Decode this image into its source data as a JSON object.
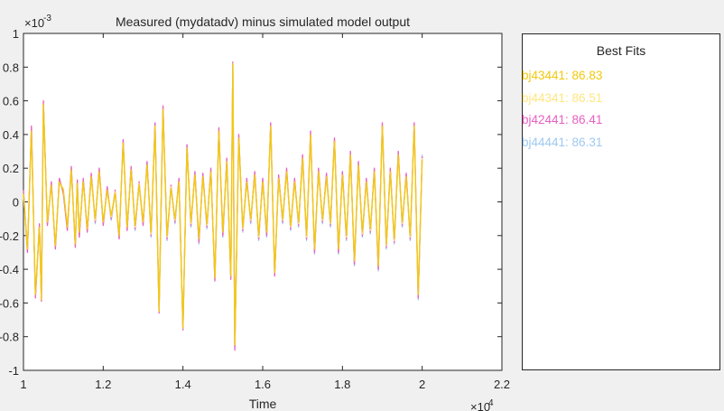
{
  "chart_data": {
    "type": "line",
    "title": "Measured (mydatadv) minus simulated model output",
    "xlabel": "Time",
    "ylabel": "",
    "xlim": [
      10000,
      22000
    ],
    "ylim": [
      -0.001,
      0.001
    ],
    "x_ticks": [
      10000,
      12000,
      14000,
      16000,
      18000,
      20000,
      22000
    ],
    "x_tick_labels": [
      "1",
      "1.2",
      "1.4",
      "1.6",
      "1.8",
      "2",
      "2.2"
    ],
    "x_exponent_label": "×10",
    "x_exponent": "4",
    "y_ticks": [
      -0.001,
      -0.0008,
      -0.0006,
      -0.0004,
      -0.0002,
      0,
      0.0002,
      0.0004,
      0.0006,
      0.0008,
      0.001
    ],
    "y_tick_labels": [
      "-1",
      "-0.8",
      "-0.6",
      "-0.4",
      "-0.2",
      "0",
      "0.2",
      "0.4",
      "0.6",
      "0.8",
      "1"
    ],
    "y_exponent_label": "×10",
    "y_exponent": "-3",
    "grid": false,
    "legend_position": "right panel",
    "x": [
      10000,
      10100,
      10200,
      10300,
      10400,
      10450,
      10500,
      10600,
      10700,
      10800,
      10900,
      11000,
      11100,
      11200,
      11300,
      11350,
      11400,
      11500,
      11600,
      11700,
      11800,
      11900,
      12000,
      12100,
      12200,
      12300,
      12400,
      12500,
      12600,
      12700,
      12800,
      12900,
      13000,
      13100,
      13200,
      13300,
      13400,
      13500,
      13600,
      13700,
      13800,
      13900,
      14000,
      14100,
      14200,
      14300,
      14400,
      14500,
      14600,
      14700,
      14800,
      14900,
      15000,
      15100,
      15200,
      15250,
      15300,
      15400,
      15500,
      15600,
      15700,
      15800,
      15900,
      16000,
      16100,
      16200,
      16300,
      16400,
      16500,
      16600,
      16700,
      16800,
      16900,
      17000,
      17100,
      17200,
      17300,
      17400,
      17500,
      17600,
      17700,
      17800,
      17900,
      18000,
      18100,
      18200,
      18300,
      18400,
      18500,
      18600,
      18700,
      18800,
      18900,
      19000,
      19100,
      19200,
      19300,
      19400,
      19500,
      19600,
      19700,
      19800,
      19900,
      20000
    ],
    "series": [
      {
        "name": "bj43441",
        "color": "#f2c80f",
        "values": [
          5e-05,
          -0.00028,
          0.00042,
          -0.00055,
          -0.00015,
          -0.00058,
          0.00058,
          -0.00012,
          0.0001,
          -0.00026,
          0.00012,
          7e-05,
          -0.00015,
          0.00019,
          -0.00025,
          0.00011,
          -0.00018,
          0.00012,
          -0.00016,
          0.00015,
          -0.0001,
          0.00018,
          -0.00012,
          7e-05,
          -8e-05,
          5e-05,
          -0.0002,
          0.00035,
          -0.00015,
          0.00019,
          -0.00014,
          0.0001,
          -0.00012,
          0.00022,
          -0.00018,
          0.00045,
          -0.00065,
          0.00055,
          -0.0002,
          8e-05,
          -0.0001,
          0.00012,
          -0.00075,
          0.00032,
          -0.00012,
          0.00016,
          -0.00022,
          0.00015,
          -0.00013,
          0.00018,
          -0.00045,
          0.00042,
          -0.00018,
          0.00024,
          -0.00044,
          0.00082,
          -0.00085,
          0.00038,
          -0.00015,
          0.00012,
          -0.0001,
          0.00016,
          -0.0002,
          0.00012,
          -0.00018,
          0.00045,
          -0.00042,
          0.00014,
          -0.0001,
          0.00018,
          -0.00014,
          0.00012,
          -0.00012,
          0.00026,
          -0.0002,
          0.0004,
          -0.00028,
          0.00018,
          -0.0001,
          0.00015,
          -0.00012,
          0.00036,
          -0.00028,
          0.00016,
          -0.0002,
          0.00028,
          -0.00035,
          0.00022,
          -0.00018,
          0.00012,
          -0.00016,
          0.00018,
          -0.00038,
          0.00045,
          -0.00025,
          0.00018,
          -0.00022,
          0.00028,
          -0.00012,
          0.00015,
          -0.0002,
          0.00045,
          -0.00055,
          0.00025
        ]
      },
      {
        "name": "bj44341",
        "color": "#ffe680",
        "values": [
          4e-05,
          -0.00027,
          0.0004,
          -0.00053,
          -0.00016,
          -0.00056,
          0.00057,
          -0.00011,
          9e-05,
          -0.00025,
          0.00011,
          8e-05,
          -0.00014,
          0.00018,
          -0.00024,
          0.0001,
          -0.00017,
          0.00011,
          -0.00015,
          0.00014,
          -0.00011,
          0.00017,
          -0.00011,
          6e-05,
          -9e-05,
          6e-05,
          -0.00019,
          0.00034,
          -0.00014,
          0.00018,
          -0.00015,
          0.00011,
          -0.00011,
          0.00021,
          -0.00019,
          0.00044,
          -0.00064,
          0.00054,
          -0.00021,
          9e-05,
          -0.00011,
          0.00011,
          -0.00074,
          0.00031,
          -0.00013,
          0.00015,
          -0.00021,
          0.00014,
          -0.00014,
          0.00017,
          -0.00044,
          0.00041,
          -0.00017,
          0.00023,
          -0.00043,
          0.00081,
          -0.00084,
          0.00037,
          -0.00016,
          0.00011,
          -0.00011,
          0.00015,
          -0.00021,
          0.00011,
          -0.00017,
          0.00044,
          -0.00041,
          0.00013,
          -0.00011,
          0.00017,
          -0.00015,
          0.00011,
          -0.00013,
          0.00025,
          -0.00021,
          0.00039,
          -0.00027,
          0.00017,
          -0.00011,
          0.00014,
          -0.00013,
          0.00035,
          -0.00027,
          0.00015,
          -0.00021,
          0.00027,
          -0.00034,
          0.00021,
          -0.00019,
          0.00011,
          -0.00017,
          0.00017,
          -0.00037,
          0.00044,
          -0.00026,
          0.00017,
          -0.00023,
          0.00027,
          -0.00013,
          0.00014,
          -0.00021,
          0.00044,
          -0.00054,
          0.00026
        ]
      },
      {
        "name": "bj42441",
        "color": "#e85fc0",
        "values": [
          7e-05,
          -0.0003,
          0.00045,
          -0.00057,
          -0.00013,
          -0.00059,
          0.0006,
          -0.00014,
          0.00012,
          -0.00028,
          0.00014,
          5e-05,
          -0.00017,
          0.00021,
          -0.00027,
          0.00013,
          -0.00021,
          0.00014,
          -0.00018,
          0.00017,
          -0.00012,
          0.0002,
          -0.00014,
          9e-05,
          -0.0001,
          7e-05,
          -0.00022,
          0.00037,
          -0.00017,
          0.00021,
          -0.00016,
          0.00012,
          -0.00014,
          0.00024,
          -0.0002,
          0.00047,
          -0.00066,
          0.00057,
          -0.00022,
          0.0001,
          -0.00012,
          0.00014,
          -0.00076,
          0.00034,
          -0.00014,
          0.00018,
          -0.00024,
          0.00017,
          -0.00015,
          0.0002,
          -0.00047,
          0.00044,
          -0.0002,
          0.00026,
          -0.00046,
          0.00083,
          -0.00088,
          0.0004,
          -0.00017,
          0.00014,
          -0.00012,
          0.00018,
          -0.00022,
          0.00014,
          -0.0002,
          0.00047,
          -0.00044,
          0.00016,
          -0.00012,
          0.0002,
          -0.00016,
          0.00014,
          -0.00014,
          0.00028,
          -0.00022,
          0.00042,
          -0.0003,
          0.0002,
          -0.00012,
          0.00017,
          -0.00014,
          0.00038,
          -0.0003,
          0.00018,
          -0.00022,
          0.0003,
          -0.00037,
          0.00024,
          -0.0002,
          0.00014,
          -0.00018,
          0.0002,
          -0.0004,
          0.00047,
          -0.00027,
          0.0002,
          -0.00024,
          0.0003,
          -0.00014,
          0.00017,
          -0.00022,
          0.00047,
          -0.00057,
          0.00027
        ]
      },
      {
        "name": "bj44441",
        "color": "#9ec9f0",
        "values": [
          6e-05,
          -0.00029,
          0.00044,
          -0.00056,
          -0.00014,
          -0.00058,
          0.00059,
          -0.00013,
          0.00011,
          -0.00027,
          0.00013,
          6e-05,
          -0.00016,
          0.0002,
          -0.00026,
          0.00012,
          -0.0002,
          0.00013,
          -0.00017,
          0.00016,
          -0.00013,
          0.00019,
          -0.00013,
          8e-05,
          -0.00011,
          6e-05,
          -0.00021,
          0.00036,
          -0.00016,
          0.0002,
          -0.00017,
          0.00011,
          -0.00013,
          0.00023,
          -0.00021,
          0.00046,
          -0.00065,
          0.00056,
          -0.00023,
          9e-05,
          -0.00013,
          0.00013,
          -0.00075,
          0.00033,
          -0.00015,
          0.00017,
          -0.00025,
          0.00016,
          -0.00016,
          0.00019,
          -0.00046,
          0.00043,
          -0.00021,
          0.00025,
          -0.00045,
          0.00082,
          -0.00086,
          0.00039,
          -0.00018,
          0.00013,
          -0.00013,
          0.00017,
          -0.00023,
          0.00013,
          -0.00021,
          0.00046,
          -0.00043,
          0.00015,
          -0.00013,
          0.00019,
          -0.00017,
          0.00013,
          -0.00015,
          0.00027,
          -0.00023,
          0.00041,
          -0.00031,
          0.00019,
          -0.00013,
          0.00016,
          -0.00015,
          0.00037,
          -0.00031,
          0.00017,
          -0.00023,
          0.00029,
          -0.00038,
          0.00023,
          -0.00021,
          0.00013,
          -0.00019,
          0.00019,
          -0.00041,
          0.00046,
          -0.00028,
          0.00019,
          -0.00025,
          0.00029,
          -0.00015,
          0.00016,
          -0.00023,
          0.00046,
          -0.00058,
          0.00028
        ]
      }
    ]
  },
  "legend": {
    "title": "Best Fits",
    "entries": [
      {
        "label": "bj43441: 86.83",
        "color": "#f2c80f"
      },
      {
        "label": "bj44341: 86.51",
        "color": "#ffe680"
      },
      {
        "label": "bj42441: 86.41",
        "color": "#e85fc0"
      },
      {
        "label": "bj44441: 86.31",
        "color": "#9ec9f0"
      }
    ]
  }
}
